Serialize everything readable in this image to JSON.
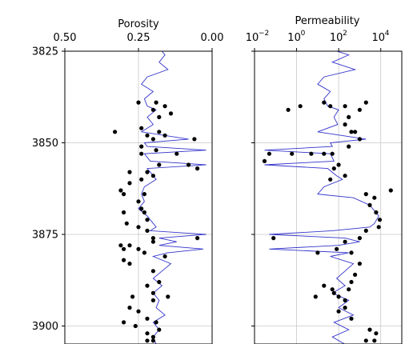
{
  "chart_data": [
    {
      "type": "scatter",
      "title": "Porosity",
      "xlabel": "",
      "ylabel": "",
      "x_scale": "linear",
      "x_range": [
        0.5,
        0.0
      ],
      "x_inverted": true,
      "y_range": [
        3825,
        3905
      ],
      "y_inverted": true,
      "grid": true,
      "x_ticks": [
        0.5,
        0.25,
        0.0
      ],
      "x_tick_labels": [
        "0.50",
        "0.25",
        "0.00"
      ],
      "y_ticks": [
        3825,
        3850,
        3875,
        3900
      ],
      "y_tick_labels": [
        "3825",
        "3850",
        "3875",
        "3900"
      ],
      "series": [
        {
          "kind": "line",
          "color": "#3333cc",
          "points": [
            [
              0.17,
              3825
            ],
            [
              0.16,
              3826
            ],
            [
              0.18,
              3828
            ],
            [
              0.15,
              3830
            ],
            [
              0.22,
              3832
            ],
            [
              0.24,
              3834
            ],
            [
              0.2,
              3836
            ],
            [
              0.23,
              3838
            ],
            [
              0.22,
              3840
            ],
            [
              0.19,
              3841
            ],
            [
              0.22,
              3843
            ],
            [
              0.2,
              3845
            ],
            [
              0.24,
              3847
            ],
            [
              0.08,
              3849
            ],
            [
              0.23,
              3850
            ],
            [
              0.22,
              3851
            ],
            [
              0.02,
              3852
            ],
            [
              0.23,
              3853
            ],
            [
              0.21,
              3855
            ],
            [
              0.02,
              3856
            ],
            [
              0.22,
              3857
            ],
            [
              0.2,
              3859
            ],
            [
              0.19,
              3860
            ],
            [
              0.23,
              3862
            ],
            [
              0.24,
              3864
            ],
            [
              0.23,
              3866
            ],
            [
              0.25,
              3868
            ],
            [
              0.22,
              3870
            ],
            [
              0.2,
              3872
            ],
            [
              0.19,
              3873
            ],
            [
              0.21,
              3874
            ],
            [
              0.02,
              3875
            ],
            [
              0.18,
              3876
            ],
            [
              0.12,
              3877
            ],
            [
              0.18,
              3878
            ],
            [
              0.03,
              3879
            ],
            [
              0.15,
              3880
            ],
            [
              0.2,
              3881
            ],
            [
              0.14,
              3883
            ],
            [
              0.17,
              3885
            ],
            [
              0.2,
              3887
            ],
            [
              0.17,
              3889
            ],
            [
              0.2,
              3891
            ],
            [
              0.18,
              3893
            ],
            [
              0.19,
              3895
            ],
            [
              0.16,
              3897
            ],
            [
              0.2,
              3899
            ],
            [
              0.18,
              3901
            ],
            [
              0.2,
              3903
            ],
            [
              0.19,
              3905
            ]
          ]
        },
        {
          "kind": "points",
          "color": "#000000",
          "points": [
            [
              0.33,
              3847
            ],
            [
              0.22,
              3848
            ],
            [
              0.18,
              3847
            ],
            [
              0.2,
              3849
            ],
            [
              0.16,
              3848
            ],
            [
              0.06,
              3849
            ],
            [
              0.24,
              3851
            ],
            [
              0.19,
              3852
            ],
            [
              0.12,
              3853
            ],
            [
              0.24,
              3853
            ],
            [
              0.18,
              3856
            ],
            [
              0.08,
              3856
            ],
            [
              0.05,
              3857
            ],
            [
              0.22,
              3858
            ],
            [
              0.2,
              3859
            ],
            [
              0.24,
              3860
            ],
            [
              0.28,
              3858
            ],
            [
              0.28,
              3861
            ],
            [
              0.25,
              3839
            ],
            [
              0.19,
              3839
            ],
            [
              0.16,
              3840
            ],
            [
              0.2,
              3841
            ],
            [
              0.14,
              3842
            ],
            [
              0.18,
              3843
            ],
            [
              0.24,
              3846
            ],
            [
              0.23,
              3864
            ],
            [
              0.25,
              3866
            ],
            [
              0.24,
              3868
            ],
            [
              0.23,
              3869
            ],
            [
              0.22,
              3871
            ],
            [
              0.3,
              3869
            ],
            [
              0.29,
              3872
            ],
            [
              0.25,
              3873
            ],
            [
              0.22,
              3874
            ],
            [
              0.2,
              3876
            ],
            [
              0.05,
              3876
            ],
            [
              0.2,
              3877
            ],
            [
              0.28,
              3878
            ],
            [
              0.25,
              3879
            ],
            [
              0.23,
              3880
            ],
            [
              0.16,
              3881
            ],
            [
              0.28,
              3883
            ],
            [
              0.2,
              3885
            ],
            [
              0.18,
              3888
            ],
            [
              0.22,
              3889
            ],
            [
              0.2,
              3891
            ],
            [
              0.15,
              3892
            ],
            [
              0.2,
              3893
            ],
            [
              0.25,
              3896
            ],
            [
              0.22,
              3898
            ],
            [
              0.19,
              3899
            ],
            [
              0.26,
              3900
            ],
            [
              0.18,
              3901
            ],
            [
              0.22,
              3902
            ],
            [
              0.2,
              3904
            ],
            [
              0.31,
              3863
            ],
            [
              0.3,
              3864
            ],
            [
              0.31,
              3878
            ],
            [
              0.3,
              3879
            ],
            [
              0.3,
              3882
            ],
            [
              0.27,
              3892
            ],
            [
              0.28,
              3895
            ],
            [
              0.3,
              3899
            ],
            [
              0.2,
              3903
            ],
            [
              0.22,
              3904
            ]
          ]
        }
      ]
    },
    {
      "type": "scatter",
      "title": "Permeability",
      "xlabel": "",
      "ylabel": "",
      "x_scale": "log",
      "x_range": [
        0.01,
        100000
      ],
      "y_range": [
        3825,
        3905
      ],
      "y_inverted": true,
      "grid": true,
      "x_ticks": [
        0.01,
        1,
        100,
        10000
      ],
      "x_tick_labels_base": [
        "10",
        "10",
        "10",
        "10"
      ],
      "x_tick_labels_exp": [
        "−2",
        "0",
        "2",
        "4"
      ],
      "y_ticks": [
        3825,
        3850,
        3875,
        3900
      ],
      "series": [
        {
          "kind": "line",
          "color": "#3333cc",
          "points": [
            [
              80,
              3825
            ],
            [
              300,
              3826
            ],
            [
              50,
              3828
            ],
            [
              600,
              3830
            ],
            [
              20,
              3832
            ],
            [
              10,
              3834
            ],
            [
              40,
              3836
            ],
            [
              20,
              3838
            ],
            [
              30,
              3840
            ],
            [
              100,
              3841
            ],
            [
              60,
              3843
            ],
            [
              90,
              3845
            ],
            [
              10,
              3847
            ],
            [
              2000,
              3849
            ],
            [
              40,
              3850
            ],
            [
              50,
              3851
            ],
            [
              0.03,
              3852
            ],
            [
              40,
              3853
            ],
            [
              60,
              3855
            ],
            [
              0.03,
              3856
            ],
            [
              30,
              3857
            ],
            [
              80,
              3859
            ],
            [
              150,
              3860
            ],
            [
              20,
              3862
            ],
            [
              10,
              3864
            ],
            [
              500,
              3865
            ],
            [
              3000,
              3867
            ],
            [
              8000,
              3870
            ],
            [
              5000,
              3872
            ],
            [
              3000,
              3873
            ],
            [
              50,
              3874
            ],
            [
              0.05,
              3875
            ],
            [
              200,
              3876
            ],
            [
              1000,
              3877
            ],
            [
              100,
              3878
            ],
            [
              0.05,
              3879
            ],
            [
              300,
              3880
            ],
            [
              40,
              3881
            ],
            [
              500,
              3883
            ],
            [
              200,
              3885
            ],
            [
              80,
              3887
            ],
            [
              200,
              3889
            ],
            [
              50,
              3891
            ],
            [
              300,
              3893
            ],
            [
              100,
              3895
            ],
            [
              500,
              3897
            ],
            [
              60,
              3899
            ],
            [
              300,
              3901
            ],
            [
              50,
              3903
            ],
            [
              200,
              3905
            ]
          ]
        },
        {
          "kind": "points",
          "color": "#000000",
          "points": [
            [
              0.4,
              3841
            ],
            [
              1.5,
              3840
            ],
            [
              20,
              3839
            ],
            [
              40,
              3840
            ],
            [
              200,
              3840
            ],
            [
              2000,
              3839
            ],
            [
              1000,
              3841
            ],
            [
              300,
              3843
            ],
            [
              200,
              3845
            ],
            [
              400,
              3847
            ],
            [
              600,
              3847
            ],
            [
              1000,
              3849
            ],
            [
              0.05,
              3853
            ],
            [
              0.03,
              3855
            ],
            [
              0.6,
              3853
            ],
            [
              5,
              3853
            ],
            [
              20,
              3853
            ],
            [
              50,
              3853
            ],
            [
              100,
              3856
            ],
            [
              60,
              3857
            ],
            [
              200,
              3859
            ],
            [
              40,
              3860
            ],
            [
              300,
              3851
            ],
            [
              2000,
              3864
            ],
            [
              5000,
              3865
            ],
            [
              30000,
              3863
            ],
            [
              3000,
              3867
            ],
            [
              6000,
              3869
            ],
            [
              9000,
              3871
            ],
            [
              8000,
              3873
            ],
            [
              2000,
              3874
            ],
            [
              1000,
              3876
            ],
            [
              0.08,
              3876
            ],
            [
              200,
              3877
            ],
            [
              80,
              3879
            ],
            [
              400,
              3880
            ],
            [
              10,
              3880
            ],
            [
              1000,
              3883
            ],
            [
              600,
              3886
            ],
            [
              400,
              3888
            ],
            [
              300,
              3890
            ],
            [
              20,
              3889
            ],
            [
              60,
              3891
            ],
            [
              200,
              3893
            ],
            [
              8,
              3892
            ],
            [
              50,
              3890
            ],
            [
              100,
              3892
            ],
            [
              3000,
              3901
            ],
            [
              6000,
              3902
            ],
            [
              5000,
              3904
            ],
            [
              2000,
              3904
            ],
            [
              200,
              3895
            ],
            [
              100,
              3896
            ],
            [
              400,
              3898
            ]
          ]
        }
      ]
    }
  ]
}
